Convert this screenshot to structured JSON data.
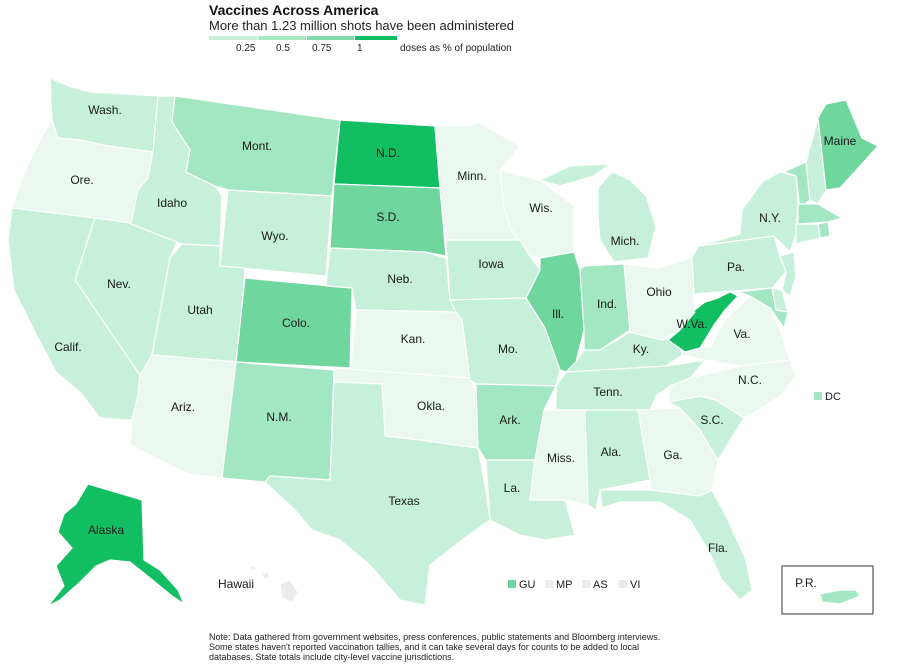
{
  "header": {
    "title": "Vaccines Across America",
    "subtitle": "More than 1.23 million shots have been administered"
  },
  "legend": {
    "ticks": [
      "0.25",
      "0.5",
      "0.75",
      "1"
    ],
    "unit": "doses as % of population",
    "colors": [
      "#c9f0da",
      "#a8e8c4",
      "#7fdca8",
      "#4fcc8a",
      "#12be62"
    ]
  },
  "colors": {
    "c0": "#eaf8f0",
    "c1": "#c6f0d9",
    "c2": "#a3e6c2",
    "c3": "#6fd79e",
    "c4": "#12be62",
    "c_na": "#ebebeb"
  },
  "states": {
    "wash": {
      "label": "Wash.",
      "level": "c1"
    },
    "ore": {
      "label": "Ore.",
      "level": "c0"
    },
    "calif": {
      "label": "Calif.",
      "level": "c1"
    },
    "nev": {
      "label": "Nev.",
      "level": "c1"
    },
    "idaho": {
      "label": "Idaho",
      "level": "c1"
    },
    "mont": {
      "label": "Mont.",
      "level": "c2"
    },
    "wyo": {
      "label": "Wyo.",
      "level": "c1"
    },
    "utah": {
      "label": "Utah",
      "level": "c1"
    },
    "ariz": {
      "label": "Ariz.",
      "level": "c0"
    },
    "colo": {
      "label": "Colo.",
      "level": "c3"
    },
    "nm": {
      "label": "N.M.",
      "level": "c2"
    },
    "nd": {
      "label": "N.D.",
      "level": "c4"
    },
    "sd": {
      "label": "S.D.",
      "level": "c3"
    },
    "neb": {
      "label": "Neb.",
      "level": "c1"
    },
    "kan": {
      "label": "Kan.",
      "level": "c0"
    },
    "okla": {
      "label": "Okla.",
      "level": "c0"
    },
    "texas": {
      "label": "Texas",
      "level": "c1"
    },
    "minn": {
      "label": "Minn.",
      "level": "c0"
    },
    "iowa": {
      "label": "Iowa",
      "level": "c1"
    },
    "mo": {
      "label": "Mo.",
      "level": "c1"
    },
    "ark": {
      "label": "Ark.",
      "level": "c2"
    },
    "la": {
      "label": "La.",
      "level": "c1"
    },
    "wis": {
      "label": "Wis.",
      "level": "c0"
    },
    "ill": {
      "label": "Ill.",
      "level": "c3"
    },
    "mich": {
      "label": "Mich.",
      "level": "c1"
    },
    "ind": {
      "label": "Ind.",
      "level": "c2"
    },
    "ohio": {
      "label": "Ohio",
      "level": "c0"
    },
    "ky": {
      "label": "Ky.",
      "level": "c1"
    },
    "tenn": {
      "label": "Tenn.",
      "level": "c1"
    },
    "miss": {
      "label": "Miss.",
      "level": "c0"
    },
    "ala": {
      "label": "Ala.",
      "level": "c1"
    },
    "ga": {
      "label": "Ga.",
      "level": "c0"
    },
    "fla": {
      "label": "Fla.",
      "level": "c1"
    },
    "sc": {
      "label": "S.C.",
      "level": "c1"
    },
    "nc": {
      "label": "N.C.",
      "level": "c0"
    },
    "va": {
      "label": "Va.",
      "level": "c0"
    },
    "wva": {
      "label": "W.Va.",
      "level": "c4"
    },
    "pa": {
      "label": "Pa.",
      "level": "c1"
    },
    "ny": {
      "label": "N.Y.",
      "level": "c1"
    },
    "maine": {
      "label": "Maine",
      "level": "c3"
    },
    "vt": {
      "label": "",
      "level": "c2"
    },
    "nh": {
      "label": "",
      "level": "c1"
    },
    "mass": {
      "label": "",
      "level": "c2"
    },
    "ri": {
      "label": "",
      "level": "c2"
    },
    "conn": {
      "label": "",
      "level": "c1"
    },
    "nj": {
      "label": "",
      "level": "c1"
    },
    "del": {
      "label": "",
      "level": "c1"
    },
    "md": {
      "label": "",
      "level": "c2"
    },
    "alaska": {
      "label": "Alaska",
      "level": "c4"
    },
    "hawaii": {
      "label": "Hawaii",
      "level": "c_na"
    },
    "pr": {
      "label": "P.R.",
      "level": "c2"
    }
  },
  "territories": {
    "dc": {
      "label": "DC",
      "level": "c2"
    },
    "gu": {
      "label": "GU",
      "level": "c3"
    },
    "mp": {
      "label": "MP",
      "level": "c_na"
    },
    "as": {
      "label": "AS",
      "level": "c_na"
    },
    "vi": {
      "label": "VI",
      "level": "c_na"
    }
  },
  "note": "Note: Data gathered from government websites, press conferences, public statements and Bloomberg interviews. Some states haven't reported vaccination tallies, and it can take several days for counts to be added to local databases. State totals include city-level vaccine jurisdictions."
}
